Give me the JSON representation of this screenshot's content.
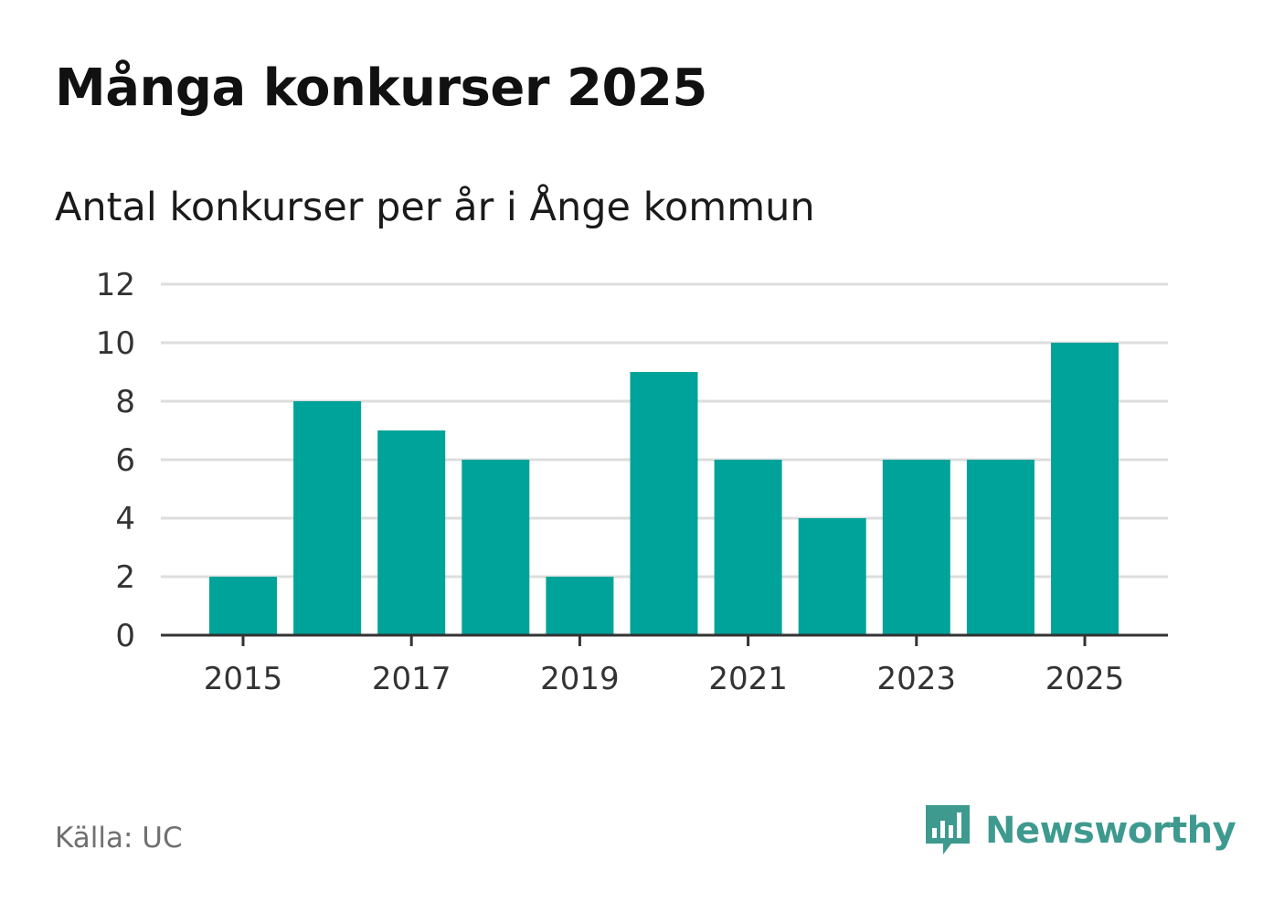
{
  "title": "Många konkurser 2025",
  "subtitle": "Antal konkurser per år i Ånge kommun",
  "source": "Källa: UC",
  "brand": {
    "name": "Newsworthy",
    "icon": "bar-chart-speech-bubble-icon",
    "color": "#3e9a8f"
  },
  "colors": {
    "bar": "#00a39a",
    "grid": "#dddddd",
    "axis": "#333333"
  },
  "chart_data": {
    "type": "bar",
    "categories": [
      "2015",
      "2016",
      "2017",
      "2018",
      "2019",
      "2020",
      "2021",
      "2022",
      "2023",
      "2024",
      "2025"
    ],
    "values": [
      2,
      8,
      7,
      6,
      2,
      9,
      6,
      4,
      6,
      6,
      10
    ],
    "x_tick_labels": [
      "2015",
      "2017",
      "2019",
      "2021",
      "2023",
      "2025"
    ],
    "y_ticks": [
      0,
      2,
      4,
      6,
      8,
      10,
      12
    ],
    "ylim": [
      0,
      12
    ],
    "title": "Många konkurser 2025",
    "subtitle": "Antal konkurser per år i Ånge kommun",
    "xlabel": "",
    "ylabel": "",
    "grid": true,
    "legend": "none"
  }
}
